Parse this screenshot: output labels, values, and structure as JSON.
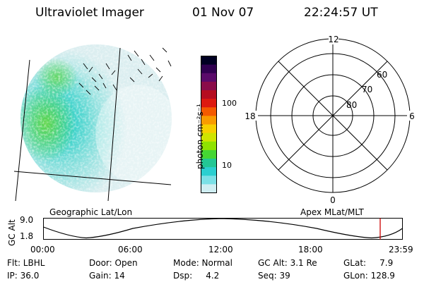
{
  "header": {
    "title": "Ultraviolet Imager",
    "date": "01 Nov 07",
    "time": "22:24:57 UT"
  },
  "colorbar": {
    "label": "photon cm⁻²s⁻¹",
    "ticks": [
      "100",
      "10"
    ],
    "colors": [
      "#000022",
      "#300050",
      "#5a0a6a",
      "#8a0c4a",
      "#b50d20",
      "#dd1a10",
      "#f45a00",
      "#f99b00",
      "#f7cf00",
      "#cfe400",
      "#8fe200",
      "#45d633",
      "#23c794",
      "#2bcfd0",
      "#7be0e6",
      "#cfeef2"
    ]
  },
  "polar": {
    "hour_labels": {
      "top": "12",
      "left": "18",
      "right": "6",
      "bottom": "0"
    },
    "lat_labels": [
      "60",
      "70",
      "80"
    ]
  },
  "altitude_strip": {
    "left_label": "Geographic Lat/Lon",
    "right_label": "Apex MLat/MLT",
    "axis_label": "GC Alt",
    "y_ticks": [
      "9.0",
      "1.8"
    ],
    "x_ticks": [
      "00:00",
      "06:00",
      "12:00",
      "18:00",
      "23:59"
    ],
    "marker_color": "#cc0000"
  },
  "info": {
    "flt": "Flt: LBHL",
    "ip": "IP: 36.0",
    "door": "Door: Open",
    "gain": "Gain: 14",
    "mode": "Mode: Normal",
    "dsp": "Dsp:     4.2",
    "gcalt": "GC Alt: 3.1 Re",
    "seq": "Seq: 39",
    "glat": "GLat:     7.9",
    "glon": "GLon: 128.9"
  }
}
